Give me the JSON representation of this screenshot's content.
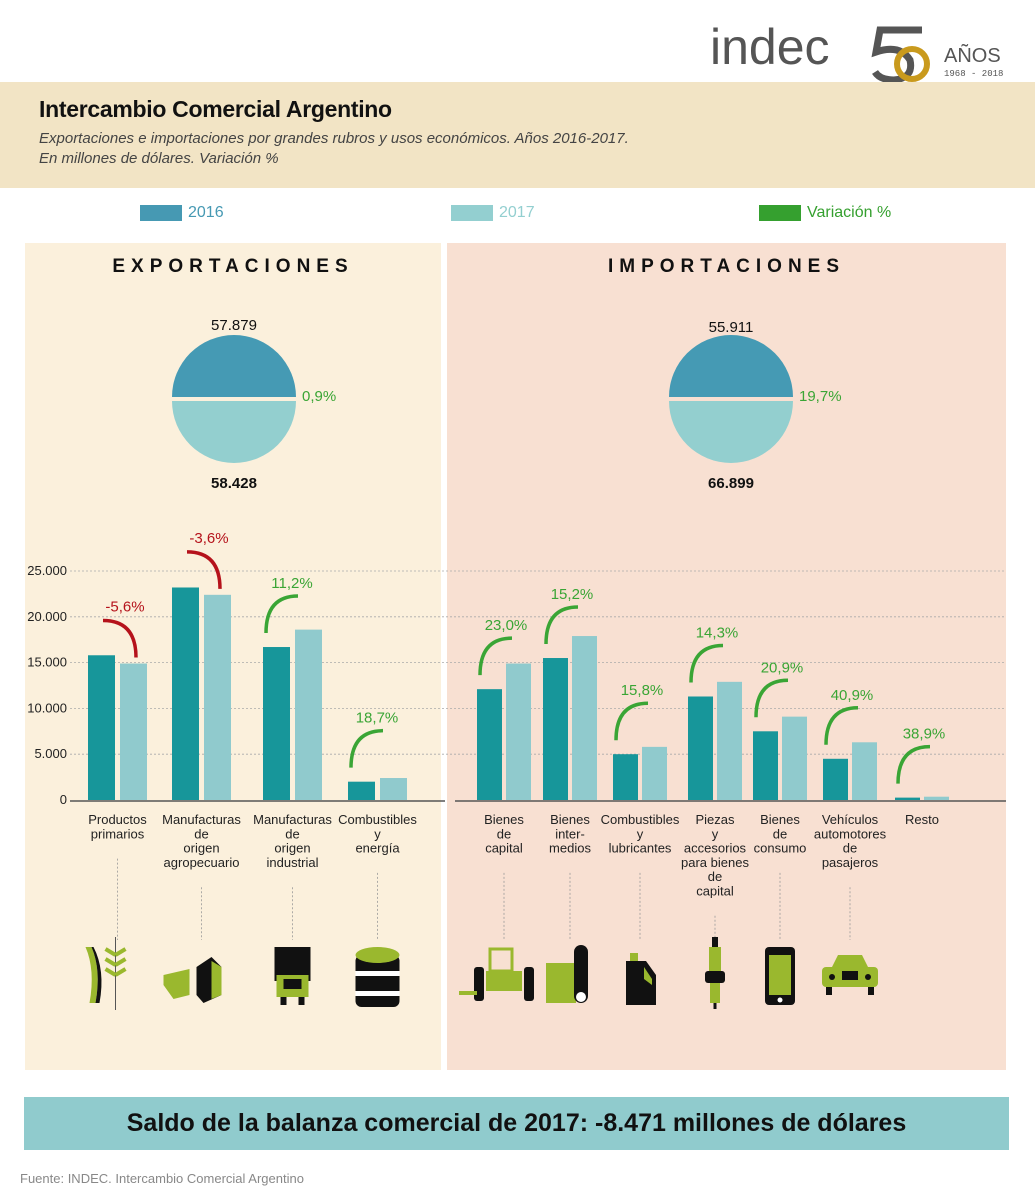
{
  "header": {
    "logo_text": "indec",
    "logo_number": "50",
    "logo_anos": "AÑOS",
    "logo_years": "1968 - 2018",
    "title": "Intercambio Comercial Argentino",
    "subtitle_line1": "Exportaciones e importaciones por grandes rubros y usos económicos. Años 2016-2017.",
    "subtitle_line2": "En millones de dólares. Variación %"
  },
  "legend": [
    {
      "label": "2016",
      "color": "#4699b3"
    },
    {
      "label": "2017",
      "color": "#93cfd0"
    },
    {
      "label": "Variación %",
      "color": "#35a02f"
    }
  ],
  "colors": {
    "bar_2016": "#17969a",
    "bar_2017": "#90cacd",
    "pie_2016": "#459ab4",
    "pie_2017": "#93cfcf",
    "positive": "#3aa535",
    "negative": "#b5121b",
    "exports_panel": "#fbf0dc",
    "imports_panel": "#f8e0d2"
  },
  "exports": {
    "title": "EXPORTACIONES",
    "total_2016": "57.879",
    "total_2017": "58.428",
    "variation": "0,9%"
  },
  "imports": {
    "title": "IMPORTACIONES",
    "total_2016": "55.911",
    "total_2017": "66.899",
    "variation": "19,7%"
  },
  "chart_data": {
    "type": "bar",
    "ylim": [
      0,
      25000
    ],
    "yticks": [
      {
        "value": 0,
        "label": "0"
      },
      {
        "value": 5000,
        "label": "5.000"
      },
      {
        "value": 10000,
        "label": "10.000"
      },
      {
        "value": 15000,
        "label": "15.000"
      },
      {
        "value": 20000,
        "label": "20.000"
      },
      {
        "value": 25000,
        "label": "25.000"
      }
    ],
    "grid": true,
    "series_names": [
      "2016",
      "2017"
    ],
    "groups": [
      {
        "panel": "exports",
        "categories": [
          {
            "label": [
              "Productos",
              "primarios"
            ],
            "v2016": 15800,
            "v2017": 14900,
            "variation": "-5,6%",
            "icon": "fish-wheat-icon"
          },
          {
            "label": [
              "Manufacturas",
              "de",
              "origen",
              "agropecuario"
            ],
            "v2016": 23200,
            "v2017": 22400,
            "variation": "-3,6%",
            "icon": "cheese-milk-carton-icon"
          },
          {
            "label": [
              "Manufacturas",
              "de",
              "origen",
              "industrial"
            ],
            "v2016": 16700,
            "v2017": 18600,
            "variation": "11,2%",
            "icon": "truck-icon"
          },
          {
            "label": [
              "Combustibles",
              "y",
              "energía"
            ],
            "v2016": 2000,
            "v2017": 2400,
            "variation": "18,7%",
            "icon": "oil-barrel-icon"
          }
        ]
      },
      {
        "panel": "imports",
        "categories": [
          {
            "label": [
              "Bienes",
              "de",
              "capital"
            ],
            "v2016": 12100,
            "v2017": 14900,
            "variation": "23,0%",
            "icon": "tractor-icon"
          },
          {
            "label": [
              "Bienes",
              "inter-",
              "medios"
            ],
            "v2016": 15500,
            "v2017": 17900,
            "variation": "15,2%",
            "icon": "roll-icon"
          },
          {
            "label": [
              "Combustibles",
              "y",
              "lubricantes"
            ],
            "v2016": 5000,
            "v2017": 5800,
            "variation": "15,8%",
            "icon": "oil-jug-icon"
          },
          {
            "label": [
              "Piezas",
              "y",
              "accesorios",
              "para bienes",
              "de",
              "capital"
            ],
            "v2016": 11300,
            "v2017": 12900,
            "variation": "14,3%",
            "icon": "spark-plug-icon"
          },
          {
            "label": [
              "Bienes",
              "de",
              "consumo"
            ],
            "v2016": 7500,
            "v2017": 9100,
            "variation": "20,9%",
            "icon": "smartphone-icon"
          },
          {
            "label": [
              "Vehículos",
              "automotores",
              "de",
              "pasajeros"
            ],
            "v2016": 4500,
            "v2017": 6300,
            "variation": "40,9%",
            "icon": "car-icon"
          },
          {
            "label": [
              "Resto"
            ],
            "v2016": 260,
            "v2017": 360,
            "variation": "38,9%",
            "icon": ""
          }
        ]
      }
    ]
  },
  "footer": {
    "saldo": "Saldo de la balanza comercial de 2017: -8.471 millones de dólares",
    "source": "Fuente: INDEC. Intercambio Comercial Argentino"
  }
}
